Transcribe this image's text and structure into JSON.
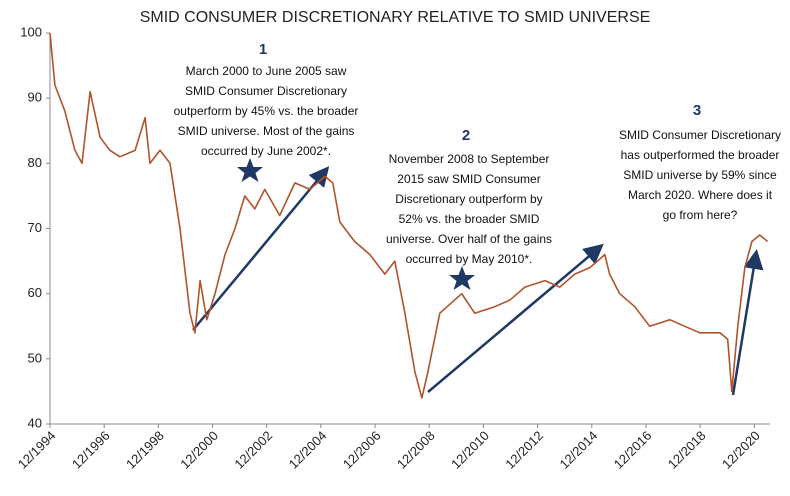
{
  "chart_data": {
    "type": "line",
    "title": "SMID CONSUMER DISCRETIONARY RELATIVE TO SMID UNIVERSE",
    "x": [
      1994.92,
      1995.1,
      1995.47,
      1995.84,
      1996.1,
      1996.4,
      1996.77,
      1997.13,
      1997.5,
      1998.06,
      1998.43,
      1998.61,
      1998.98,
      1999.35,
      1999.72,
      2000.09,
      2000.27,
      2000.46,
      2000.71,
      2001.01,
      2001.38,
      2001.75,
      2002.11,
      2002.48,
      2002.85,
      2003.4,
      2003.96,
      2004.51,
      2005.07,
      2005.36,
      2005.62,
      2006.17,
      2006.73,
      2007.28,
      2007.65,
      2008.02,
      2008.39,
      2008.65,
      2008.87,
      2009.31,
      2010.12,
      2010.6,
      2011.34,
      2011.89,
      2012.45,
      2013.19,
      2013.74,
      2014.29,
      2014.85,
      2015.4,
      2015.58,
      2015.95,
      2016.51,
      2017.06,
      2017.8,
      2018.35,
      2018.91,
      2019.65,
      2019.94,
      2020.09,
      2020.31,
      2020.57,
      2020.83,
      2021.12,
      2021.41
    ],
    "values": [
      100,
      92,
      88,
      82,
      80,
      91,
      84,
      82,
      81,
      82,
      87,
      80,
      82,
      80,
      70,
      57,
      54,
      62,
      56,
      60,
      66,
      70,
      75,
      73,
      76,
      72,
      77,
      76,
      78,
      77,
      71,
      68,
      66,
      63,
      65,
      57,
      48,
      44,
      48,
      57,
      60,
      57,
      58,
      59,
      61,
      62,
      61,
      63,
      64,
      66,
      63,
      60,
      58,
      55,
      56,
      55,
      54,
      54,
      53,
      45,
      55,
      64,
      68,
      69,
      68
    ],
    "color": "#b0532b",
    "xlim": [
      1994.92,
      2021.5
    ],
    "xticks": [
      {
        "value": 1994.92,
        "label": "12/1994"
      },
      {
        "value": 1996.92,
        "label": "12/1996"
      },
      {
        "value": 1998.92,
        "label": "12/1998"
      },
      {
        "value": 2000.92,
        "label": "12/2000"
      },
      {
        "value": 2002.92,
        "label": "12/2002"
      },
      {
        "value": 2004.92,
        "label": "12/2004"
      },
      {
        "value": 2006.92,
        "label": "12/2006"
      },
      {
        "value": 2008.92,
        "label": "12/2008"
      },
      {
        "value": 2010.92,
        "label": "12/2010"
      },
      {
        "value": 2012.92,
        "label": "12/2012"
      },
      {
        "value": 2014.92,
        "label": "12/2014"
      },
      {
        "value": 2016.92,
        "label": "12/2016"
      },
      {
        "value": 2018.92,
        "label": "12/2018"
      },
      {
        "value": 2020.92,
        "label": "12/2020"
      }
    ],
    "ylim": [
      40,
      100
    ],
    "yticks": [
      40,
      50,
      60,
      70,
      80,
      90,
      100
    ],
    "annotations": [
      {
        "number": "1",
        "lines": [
          "March 2000 to June 2005 saw",
          "SMID Consumer Discretionary",
          "outperform by 45% vs. the broader",
          "SMID universe. Most of the gains",
          "occurred by June 2002*."
        ]
      },
      {
        "number": "2",
        "lines": [
          "November 2008 to September",
          "2015 saw SMID Consumer",
          "Discretionary outperform by",
          "52% vs. the broader SMID",
          "universe. Over half of the gains",
          "occurred by May 2010*."
        ]
      },
      {
        "number": "3",
        "lines": [
          "SMID Consumer Discretionary",
          "has outperformed the broader",
          "SMID universe by 59% since",
          "March 2020. Where does it",
          "go from here?"
        ]
      }
    ]
  }
}
